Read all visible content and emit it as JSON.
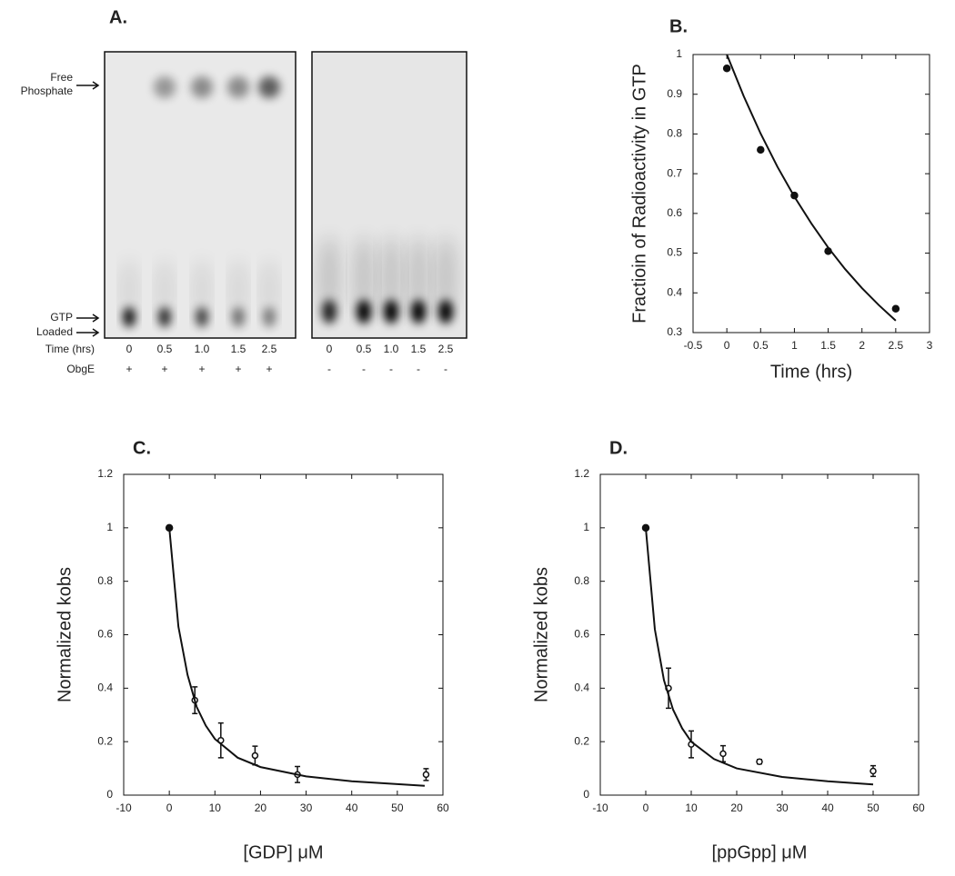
{
  "gel": {
    "panel_label": "A.",
    "top_label": [
      "Free",
      "Phosphate"
    ],
    "bottom_label": [
      "GTP",
      "Loaded"
    ],
    "time_label": "Time (hrs)",
    "enzyme_label": "ObgE",
    "left_lanes": [
      "0",
      "0.5",
      "1.0",
      "1.5",
      "2.5"
    ],
    "left_enzyme": [
      "+",
      "+",
      "+",
      "+",
      "+"
    ],
    "right_lanes": [
      "0",
      "0.5",
      "1.0",
      "1.5",
      "2.5"
    ],
    "right_enzyme": [
      "-",
      "-",
      "-",
      "-",
      "-"
    ]
  },
  "chart_data": [
    {
      "type": "scatter",
      "panel_label": "B.",
      "ylabel": "Fractioin of Radioactivity in GTP",
      "xlabel": "Time (hrs)",
      "xlim": [
        -0.5,
        3
      ],
      "xticks": [
        -0.5,
        0,
        0.5,
        1,
        1.5,
        2,
        2.5,
        3
      ],
      "ylim": [
        0.3,
        1
      ],
      "yticks": [
        0.3,
        0.4,
        0.5,
        0.6,
        0.7,
        0.8,
        0.9,
        1
      ],
      "series": [
        {
          "style": "points",
          "color": "#111",
          "x": [
            0,
            0.5,
            1,
            1.5,
            2.5
          ],
          "values": [
            0.965,
            0.76,
            0.645,
            0.505,
            0.36
          ],
          "marker_fill": [
            "filled",
            "filled",
            "filled",
            "filled",
            "filled"
          ]
        },
        {
          "style": "line",
          "color": "#111",
          "x": [
            0,
            0.25,
            0.5,
            0.75,
            1,
            1.25,
            1.5,
            1.75,
            2,
            2.25,
            2.5
          ],
          "values": [
            1,
            0.895,
            0.801,
            0.717,
            0.642,
            0.575,
            0.514,
            0.46,
            0.412,
            0.369,
            0.33
          ]
        }
      ]
    },
    {
      "type": "scatter",
      "panel_label": "C.",
      "ylabel": "Normalized kobs",
      "xlabel": "[GDP] μM",
      "xlim": [
        -10,
        60
      ],
      "xticks": [
        -10,
        0,
        10,
        20,
        30,
        40,
        50,
        60
      ],
      "ylim": [
        0,
        1.2
      ],
      "yticks": [
        0,
        0.2,
        0.4,
        0.6,
        0.8,
        1,
        1.2
      ],
      "series": [
        {
          "style": "points",
          "color": "#111",
          "x": [
            0,
            5.6,
            11.3,
            18.8,
            28.1,
            56.3
          ],
          "values": [
            1,
            0.355,
            0.205,
            0.148,
            0.077,
            0.077
          ],
          "errors": [
            0,
            0.05,
            0.065,
            0.035,
            0.03,
            0.022
          ],
          "marker_fill": [
            "filled",
            "open",
            "open",
            "open",
            "open",
            "open"
          ]
        },
        {
          "style": "line",
          "color": "#111",
          "x": [
            0,
            2,
            4,
            6,
            8,
            10,
            15,
            20,
            30,
            40,
            56
          ],
          "values": [
            1,
            0.63,
            0.45,
            0.33,
            0.26,
            0.21,
            0.14,
            0.105,
            0.07,
            0.052,
            0.035
          ]
        }
      ]
    },
    {
      "type": "scatter",
      "panel_label": "D.",
      "ylabel": "Normalized kobs",
      "xlabel": "[ppGpp] μM",
      "xlim": [
        -10,
        60
      ],
      "xticks": [
        -10,
        0,
        10,
        20,
        30,
        40,
        50,
        60
      ],
      "ylim": [
        0,
        1.2
      ],
      "yticks": [
        0,
        0.2,
        0.4,
        0.6,
        0.8,
        1,
        1.2
      ],
      "series": [
        {
          "style": "points",
          "color": "#111",
          "x": [
            0,
            5,
            10,
            17,
            25,
            50
          ],
          "values": [
            1,
            0.4,
            0.19,
            0.155,
            0.125,
            0.09
          ],
          "errors": [
            0,
            0.075,
            0.05,
            0.03,
            0.008,
            0.02
          ],
          "marker_fill": [
            "filled",
            "open",
            "open",
            "open",
            "open",
            "open"
          ]
        },
        {
          "style": "line",
          "color": "#111",
          "x": [
            0,
            2,
            4,
            6,
            8,
            10,
            15,
            20,
            30,
            40,
            50
          ],
          "values": [
            1,
            0.62,
            0.43,
            0.32,
            0.25,
            0.2,
            0.135,
            0.1,
            0.068,
            0.052,
            0.04
          ]
        }
      ]
    }
  ]
}
